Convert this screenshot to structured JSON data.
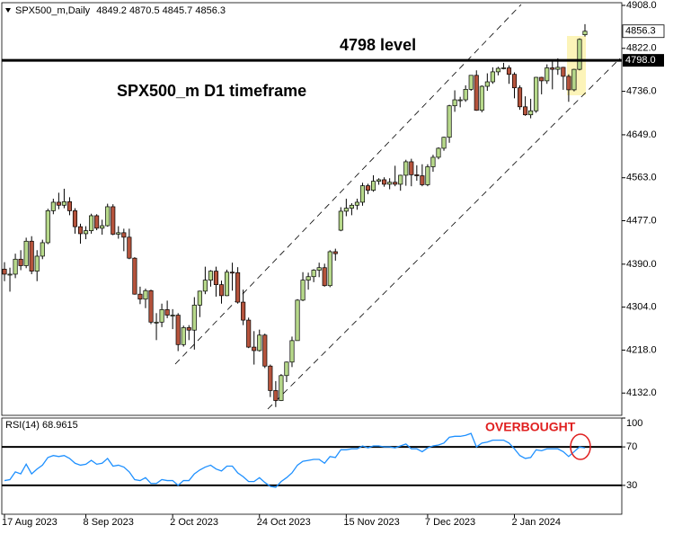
{
  "chart_data": {
    "type": "candlestick",
    "title": "SPX500_m,Daily",
    "up_color": "#b7d98b",
    "down_color": "#b5533c",
    "categories": [
      "17 Aug 2023",
      null,
      null,
      null,
      null,
      null,
      null,
      null,
      null,
      null,
      null,
      null,
      null,
      null,
      null,
      "8 Sep 2023",
      null,
      null,
      null,
      null,
      null,
      null,
      null,
      null,
      null,
      null,
      null,
      null,
      null,
      null,
      null,
      "2 Oct 2023",
      null,
      null,
      null,
      null,
      null,
      null,
      null,
      null,
      null,
      null,
      null,
      null,
      null,
      null,
      null,
      "24 Oct 2023",
      null,
      null,
      null,
      null,
      null,
      null,
      null,
      null,
      null,
      null,
      null,
      null,
      null,
      null,
      null,
      "15 Nov 2023",
      null,
      null,
      null,
      null,
      null,
      null,
      null,
      null,
      null,
      null,
      null,
      null,
      null,
      null,
      "7 Dec 2023",
      null,
      null,
      null,
      null,
      null,
      null,
      null,
      null,
      null,
      null,
      null,
      null,
      null,
      null,
      null,
      "2 Jan 2024",
      null,
      null,
      null,
      null,
      null,
      null,
      null,
      null,
      null,
      null,
      null,
      null,
      null
    ],
    "open": [
      4380,
      4370,
      4370,
      4400,
      4387,
      4436,
      4376,
      4406,
      4433,
      4497,
      4514,
      4508,
      4515,
      4497,
      4465,
      4451,
      4457,
      4487,
      4462,
      4467,
      4505,
      4450,
      4453,
      4444,
      4402,
      4330,
      4320,
      4337,
      4274,
      4274,
      4299,
      4288,
      4288,
      4229,
      4263,
      4258,
      4308,
      4336,
      4358,
      4376,
      4349,
      4327,
      4374,
      4373,
      4314,
      4278,
      4224,
      4217,
      4248,
      4186,
      4137,
      4117,
      4167,
      4194,
      4237,
      4318,
      4358,
      4365,
      4378,
      4383,
      4347,
      4415,
      4458,
      4496,
      4502,
      4508,
      4514,
      4547,
      4538,
      4556,
      4559,
      4550,
      4554,
      4550,
      4568,
      4595,
      4569,
      4567,
      4549,
      4585,
      4604,
      4622,
      4644,
      4707,
      4719,
      4719,
      4740,
      4768,
      4698,
      4746,
      4755,
      4775,
      4782,
      4783,
      4770,
      4743,
      4705,
      4689,
      4697,
      4764,
      4757,
      4783,
      4780,
      4784,
      4766,
      4739,
      4780,
      4849.2
    ],
    "high": [
      4394,
      4383,
      4411,
      4418,
      4443,
      4446,
      4418,
      4439,
      4501,
      4521,
      4533,
      4541,
      4524,
      4502,
      4471,
      4466,
      4491,
      4490,
      4479,
      4511,
      4510,
      4466,
      4461,
      4461,
      4404,
      4345,
      4341,
      4339,
      4292,
      4311,
      4317,
      4300,
      4292,
      4267,
      4268,
      4324,
      4337,
      4385,
      4378,
      4385,
      4357,
      4379,
      4393,
      4384,
      4339,
      4283,
      4256,
      4259,
      4251,
      4189,
      4156,
      4170,
      4195,
      4245,
      4320,
      4374,
      4373,
      4380,
      4393,
      4391,
      4418,
      4421,
      4504,
      4521,
      4512,
      4521,
      4553,
      4551,
      4568,
      4562,
      4564,
      4562,
      4587,
      4569,
      4599,
      4601,
      4588,
      4590,
      4590,
      4609,
      4624,
      4645,
      4709,
      4738,
      4725,
      4748,
      4768,
      4778,
      4748,
      4772,
      4784,
      4785,
      4793,
      4788,
      4774,
      4748,
      4726,
      4721,
      4765,
      4765,
      4790,
      4798,
      4802,
      4785,
      4770,
      4781,
      4842,
      4870.5
    ],
    "low": [
      4356,
      4335,
      4362,
      4378,
      4382,
      4370,
      4356,
      4400,
      4430,
      4490,
      4500,
      4502,
      4488,
      4451,
      4431,
      4440,
      4451,
      4458,
      4449,
      4465,
      4448,
      4441,
      4416,
      4400,
      4329,
      4310,
      4302,
      4270,
      4238,
      4264,
      4282,
      4260,
      4216,
      4225,
      4238,
      4219,
      4284,
      4330,
      4345,
      4325,
      4311,
      4326,
      4337,
      4311,
      4268,
      4222,
      4189,
      4215,
      4182,
      4124,
      4104,
      4116,
      4154,
      4184,
      4237,
      4316,
      4339,
      4354,
      4364,
      4345,
      4344,
      4397,
      4456,
      4486,
      4488,
      4499,
      4507,
      4530,
      4535,
      4549,
      4545,
      4540,
      4546,
      4537,
      4547,
      4546,
      4557,
      4546,
      4546,
      4575,
      4600,
      4617,
      4633,
      4695,
      4704,
      4715,
      4737,
      4697,
      4694,
      4737,
      4751,
      4768,
      4780,
      4751,
      4722,
      4699,
      4687,
      4682,
      4693,
      4730,
      4751,
      4740,
      4769,
      4739,
      4715,
      4736,
      4778,
      4845.7
    ],
    "close": [
      4370,
      4370,
      4400,
      4387,
      4436,
      4376,
      4406,
      4433,
      4497,
      4514,
      4508,
      4515,
      4497,
      4465,
      4451,
      4457,
      4487,
      4462,
      4467,
      4505,
      4450,
      4453,
      4444,
      4402,
      4330,
      4320,
      4337,
      4274,
      4274,
      4299,
      4288,
      4288,
      4229,
      4263,
      4258,
      4308,
      4336,
      4358,
      4376,
      4349,
      4327,
      4374,
      4373,
      4314,
      4278,
      4224,
      4217,
      4248,
      4186,
      4137,
      4117,
      4167,
      4194,
      4237,
      4318,
      4358,
      4365,
      4378,
      4383,
      4347,
      4415,
      4411,
      4496,
      4502,
      4508,
      4514,
      4547,
      4538,
      4556,
      4559,
      4550,
      4554,
      4550,
      4568,
      4595,
      4569,
      4567,
      4549,
      4585,
      4604,
      4622,
      4644,
      4707,
      4719,
      4719,
      4740,
      4768,
      4698,
      4746,
      4755,
      4775,
      4782,
      4783,
      4770,
      4743,
      4705,
      4689,
      4697,
      4764,
      4757,
      4783,
      4780,
      4784,
      4766,
      4739,
      4780,
      4840,
      4856.3
    ],
    "ylim": [
      4087.4,
      4913.4
    ],
    "yticks": [
      {
        "value": 4908,
        "label": "4908.0"
      },
      {
        "value": 4822,
        "label": "4822.0"
      },
      {
        "value": 4736,
        "label": "4736.0"
      },
      {
        "value": 4649,
        "label": "4649.0"
      },
      {
        "value": 4563,
        "label": "4563.0"
      },
      {
        "value": 4477,
        "label": "4477.0"
      },
      {
        "value": 4390,
        "label": "4390.0"
      },
      {
        "value": 4304,
        "label": "4304.0"
      },
      {
        "value": 4218,
        "label": "4218.0"
      },
      {
        "value": 4132,
        "label": "4132.0"
      }
    ],
    "level": {
      "value": 4798,
      "label": "4798.0"
    },
    "annotations": [
      "4798 level",
      "SPX500_m D1 timeframe",
      "OVERBOUGHT"
    ],
    "rsi": {
      "type": "line",
      "name": "RSI(14)",
      "color": "#1e90ff",
      "values": [
        35,
        36,
        44,
        42,
        52,
        42,
        47,
        51,
        59,
        61,
        60,
        61,
        58,
        53,
        51,
        52,
        56,
        52,
        53,
        58,
        50,
        51,
        49,
        44,
        36,
        35,
        38,
        32,
        32,
        36,
        35,
        35,
        30,
        35,
        35,
        42,
        46,
        49,
        51,
        47,
        45,
        50,
        50,
        43,
        39,
        34,
        34,
        38,
        33,
        29,
        28,
        34,
        38,
        43,
        51,
        55,
        56,
        57,
        57,
        53,
        60,
        59,
        67,
        67,
        68,
        68,
        71,
        69,
        71,
        71,
        70,
        70,
        69,
        71,
        73,
        68,
        68,
        65,
        69,
        71,
        72,
        74,
        80,
        81,
        81,
        82,
        84,
        70,
        74,
        75,
        77,
        77,
        77,
        74,
        68,
        61,
        58,
        59,
        67,
        66,
        68,
        68,
        68,
        65,
        60,
        65,
        70,
        68.9615
      ],
      "ylim": [
        0,
        100
      ],
      "yticks": [
        100,
        70,
        30
      ],
      "levels": [
        70,
        30
      ]
    }
  }
}
